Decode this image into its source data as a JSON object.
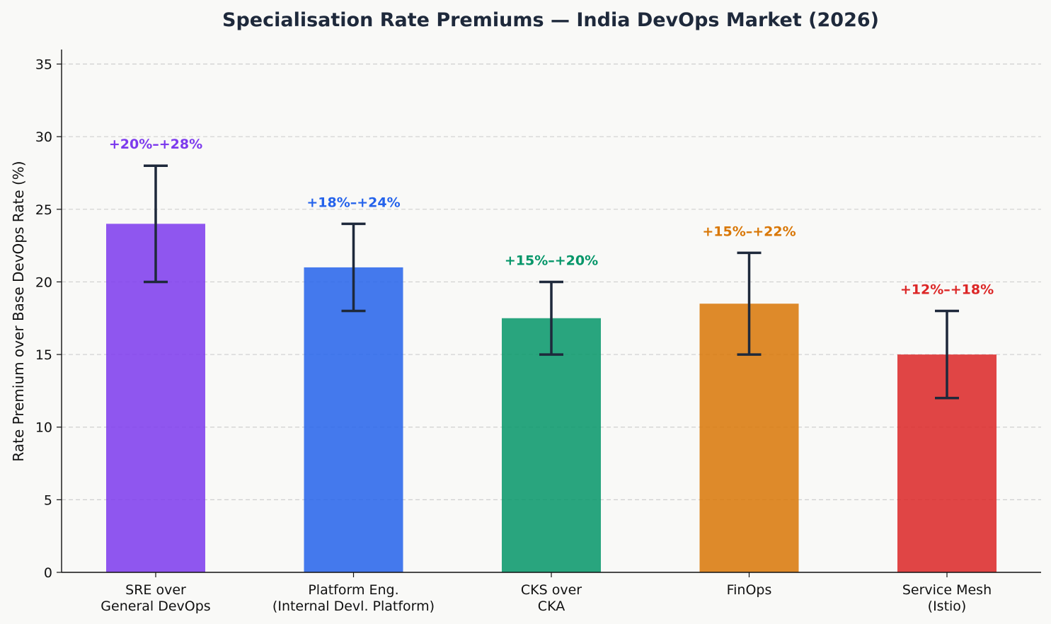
{
  "chart_data": {
    "type": "bar",
    "title": "Specialisation Rate Premiums — India DevOps Market (2026)",
    "xlabel": "",
    "ylabel": "Rate Premium over Base DevOps Rate (%)",
    "ylim": [
      0,
      36
    ],
    "yticks": [
      "0",
      "5",
      "10",
      "15",
      "20",
      "25",
      "30",
      "35"
    ],
    "ytick_values": [
      0,
      5,
      10,
      15,
      20,
      25,
      30,
      35
    ],
    "grid": "horizontal dashed",
    "categories": [
      [
        "SRE over",
        "General DevOps"
      ],
      [
        "Platform Eng.",
        "(Internal Devl. Platform)"
      ],
      [
        "CKS over",
        "CKA"
      ],
      [
        "FinOps"
      ],
      [
        "Service Mesh",
        "(Istio)"
      ]
    ],
    "values": [
      24,
      21,
      17.5,
      18.5,
      15
    ],
    "ranges": [
      [
        20,
        28
      ],
      [
        18,
        24
      ],
      [
        15,
        20
      ],
      [
        15,
        22
      ],
      [
        12,
        18
      ]
    ],
    "range_labels": [
      "+20%–+28%",
      "+18%–+24%",
      "+15%–+20%",
      "+15%–+22%",
      "+12%–+18%"
    ],
    "colors": [
      "#7c3aed",
      "#2563eb",
      "#059669",
      "#d97706",
      "#dc2626"
    ],
    "errorbar_color": "#1e293b"
  }
}
